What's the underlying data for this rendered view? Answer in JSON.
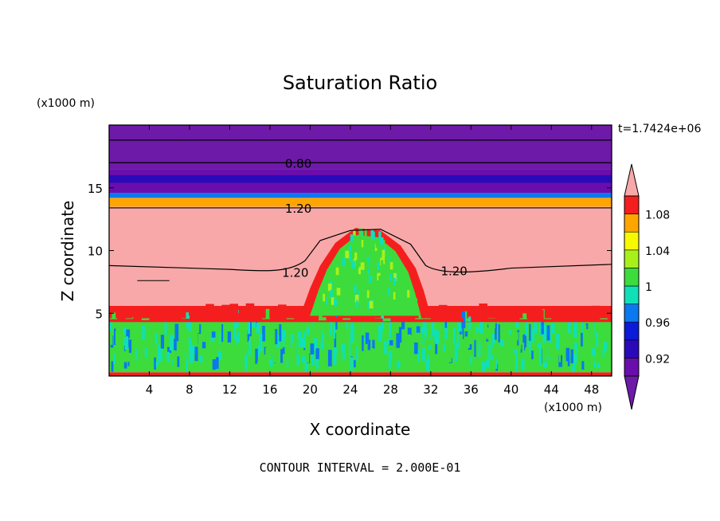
{
  "chart_data": {
    "type": "heatmap",
    "title": "Saturation Ratio",
    "xlabel": "X coordinate",
    "ylabel": "Z coordinate",
    "x_unit_label": "(x1000 m)",
    "y_unit_label": "(x1000 m)",
    "xlim": [
      0,
      50
    ],
    "ylim": [
      0,
      20
    ],
    "x_ticks": [
      4,
      8,
      12,
      16,
      20,
      24,
      28,
      32,
      36,
      40,
      44,
      48
    ],
    "y_ticks": [
      5,
      10,
      15
    ],
    "time_label": "t=1.7424e+06",
    "footer": "CONTOUR INTERVAL = 2.000E-01",
    "contour_labels": [
      {
        "text": "0.80",
        "x": 17.5,
        "z": 17.0
      },
      {
        "text": "1.20",
        "x": 17.5,
        "z": 13.4
      },
      {
        "text": "1.20",
        "x": 17.2,
        "z": 8.3
      },
      {
        "text": "1.20",
        "x": 33.0,
        "z": 8.4
      }
    ],
    "colorbar": {
      "levels": [
        0.9,
        0.92,
        0.94,
        0.96,
        0.98,
        1.0,
        1.02,
        1.04,
        1.06,
        1.08,
        1.1
      ],
      "tick_labels": [
        "1.08",
        "1.04",
        "1",
        "0.96",
        "0.92"
      ],
      "tick_values": [
        1.08,
        1.04,
        1.0,
        0.96,
        0.92
      ],
      "colors": [
        "#6a0dad",
        "#2a0ab8",
        "#0a1ad8",
        "#0a78f0",
        "#10e0b8",
        "#3cdc3c",
        "#a8f01a",
        "#f8f800",
        "#ffa500",
        "#f51e1e"
      ],
      "under_color": "#6e1aa8",
      "over_color": "#f8a8a8"
    },
    "bands": [
      {
        "from": 0.0,
        "to": 0.3,
        "value": 1.09,
        "name": "surface-red"
      },
      {
        "from": 0.3,
        "to": 4.6,
        "value": 1.0,
        "name": "turbulent-green"
      },
      {
        "from": 4.6,
        "to": 5.6,
        "value": 1.09,
        "name": "cloud-base-red"
      },
      {
        "from": 5.6,
        "to": 13.5,
        "value": 1.2,
        "name": "supersaturated-pink"
      },
      {
        "from": 13.5,
        "to": 14.2,
        "value": 1.06,
        "name": "transition-orange"
      },
      {
        "from": 14.2,
        "to": 14.6,
        "value": 0.97,
        "name": "transition-cyan"
      },
      {
        "from": 14.6,
        "to": 16.5,
        "value": 0.91,
        "name": "dry-blue"
      },
      {
        "from": 16.5,
        "to": 20.0,
        "value": 0.8,
        "name": "stratosphere-purple"
      }
    ],
    "plume": {
      "center_x": 25.5,
      "top_z": 11.8,
      "half_width": 6.5,
      "value": 1.0
    }
  }
}
